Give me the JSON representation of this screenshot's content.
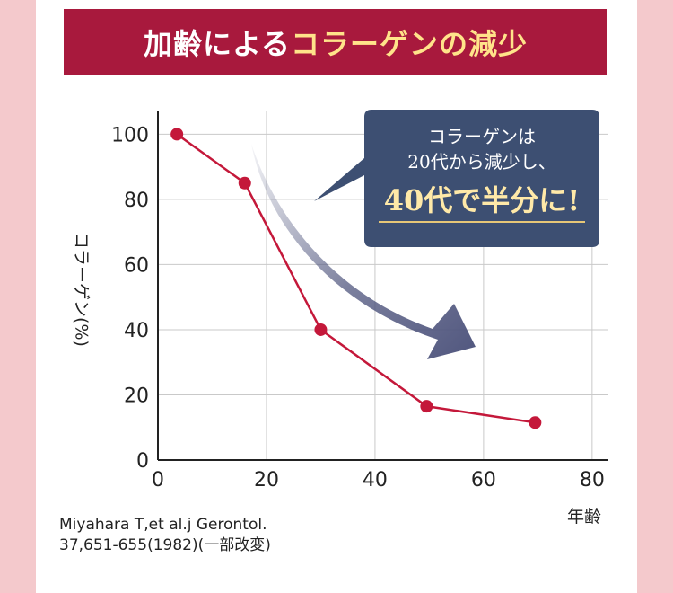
{
  "banner": {
    "title_part1": "加齢による",
    "title_part2": "コラーゲンの減少"
  },
  "callout": {
    "line1": "コラーゲンは",
    "line2": "20代から減少し、",
    "line3": "40代で半分に!"
  },
  "citation": {
    "line1": "Miyahara T,et al.j Gerontol.",
    "line2": "37,651-655(1982)(一部改変)"
  },
  "colors": {
    "banner_bg": "#a8193d",
    "banner_highlight": "#ffe38a",
    "series": "#c4183a",
    "callout_bg": "#3d4f72",
    "arrow": "#50567e",
    "page_bg": "#f4c9cc"
  },
  "chart_data": {
    "type": "line",
    "title": "加齢によるコラーゲンの減少",
    "xlabel": "年齢",
    "ylabel": "コラーゲン(%)",
    "xlim": [
      0,
      83
    ],
    "ylim": [
      0,
      107
    ],
    "xticks": [
      0,
      20,
      40,
      60,
      80
    ],
    "yticks": [
      0,
      20,
      40,
      60,
      80,
      100
    ],
    "grid": true,
    "series": [
      {
        "x": [
          3.5,
          16,
          30,
          49.5,
          69.5
        ],
        "y": [
          100,
          85,
          40,
          16.5,
          11.5
        ]
      }
    ]
  }
}
